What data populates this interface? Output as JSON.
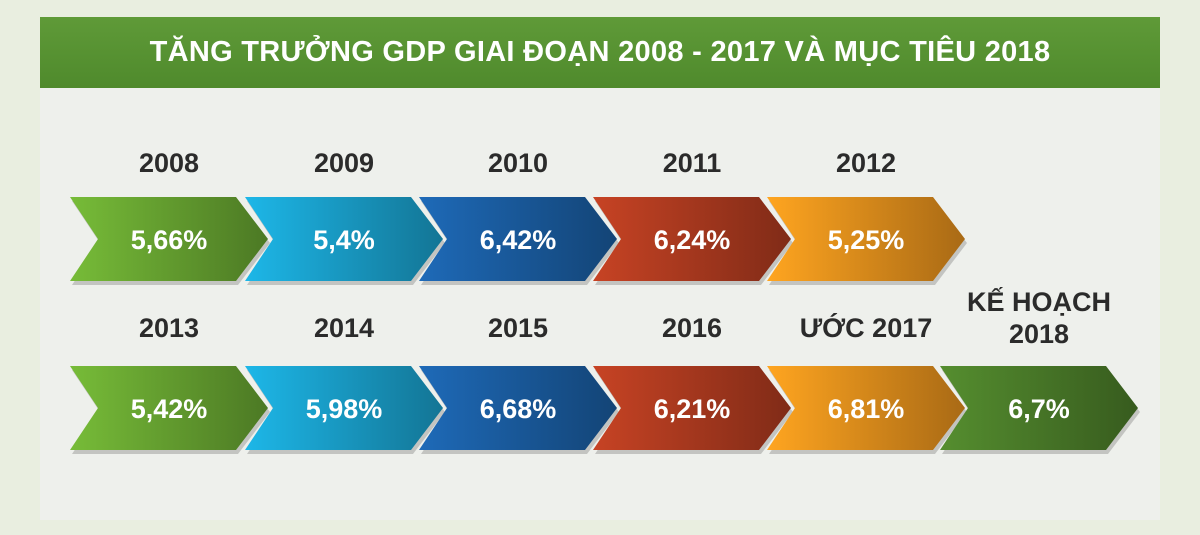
{
  "banner": {
    "title": "TĂNG TRƯỞNG GDP GIAI ĐOẠN 2008 - 2017 VÀ MỤC TIÊU 2018"
  },
  "chart_data": {
    "type": "bar",
    "title": "TĂNG TRƯỞNG GDP GIAI ĐOẠN 2008 - 2017 VÀ MỤC TIÊU 2018",
    "unit": "%",
    "categories": [
      "2008",
      "2009",
      "2010",
      "2011",
      "2012",
      "2013",
      "2014",
      "2015",
      "2016",
      "ƯỚC 2017",
      "KẾ HOẠCH 2018"
    ],
    "values": [
      5.66,
      5.4,
      6.42,
      6.24,
      5.25,
      5.42,
      5.98,
      6.68,
      6.21,
      6.81,
      6.7
    ],
    "value_labels": [
      "5,66%",
      "5,4%",
      "6,42%",
      "6,24%",
      "5,25%",
      "5,42%",
      "5,98%",
      "6,68%",
      "6,21%",
      "6,81%",
      "6,7%"
    ],
    "label_lines": [
      [
        "2008"
      ],
      [
        "2009"
      ],
      [
        "2010"
      ],
      [
        "2011"
      ],
      [
        "2012"
      ],
      [
        "2013"
      ],
      [
        "2014"
      ],
      [
        "2015"
      ],
      [
        "2016"
      ],
      [
        "ƯỚC 2017"
      ],
      [
        "KẾ HOẠCH",
        "2018"
      ]
    ],
    "rows": [
      [
        0,
        1,
        2,
        3,
        4
      ],
      [
        5,
        6,
        7,
        8,
        9,
        10
      ]
    ],
    "colors": [
      "#6aa832",
      "#1aa3cf",
      "#1b5fa4",
      "#b23c20",
      "#eb931d",
      "#6aa832",
      "#1aa3cf",
      "#1b5fa4",
      "#b23c20",
      "#eb931d",
      "#4c7f2a"
    ],
    "legend": "none",
    "grid": false
  }
}
